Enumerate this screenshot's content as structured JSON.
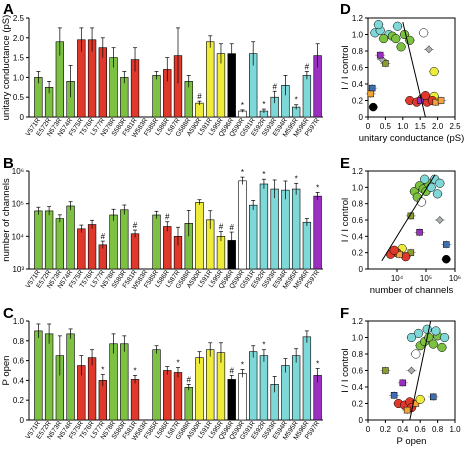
{
  "colors": {
    "green": "#7dc142",
    "red": "#e0392b",
    "yellow": "#eeeb3b",
    "white": "#ffffff",
    "black": "#000000",
    "cyan": "#7fd8d8",
    "purple": "#9b2fc0",
    "olive": "#8e9c2d",
    "blue": "#3f6fb3",
    "orange": "#f2a33a",
    "gray": "#aab0b4"
  },
  "chart_data": [
    {
      "panel": "A",
      "type": "bar",
      "ylabel": "unitary conductance (pS)",
      "ylim": [
        0,
        2.5
      ],
      "yticks": [
        0,
        0.5,
        1.0,
        1.5,
        2.0,
        2.5
      ],
      "ytick_labels": [
        "0",
        "0.5",
        "1.0",
        "1.5",
        "2.0",
        "2.5"
      ],
      "categories": [
        "V571R",
        "E572R",
        "N573R",
        "N574R",
        "F575R",
        "T576R",
        "L577R",
        "N578R",
        "S580R",
        "F581R",
        "W583R",
        "F585R",
        "L586R",
        "L587R",
        "G588R",
        "A590R",
        "L591R",
        "L595R",
        "Q596R",
        "Q590R",
        "G591R",
        "E592R",
        "S593R",
        "E594R",
        "M595R",
        "M596R",
        "P597R"
      ],
      "colors": [
        "green",
        "green",
        "green",
        "green",
        "red",
        "red",
        "red",
        "green",
        "green",
        "red",
        "green",
        "green",
        "red",
        "red",
        "green",
        "yellow",
        "yellow",
        "yellow",
        "black",
        "white",
        "cyan",
        "cyan",
        "cyan",
        "cyan",
        "cyan",
        "cyan",
        "purple"
      ],
      "values": [
        1.0,
        0.75,
        1.9,
        0.9,
        1.95,
        1.95,
        1.75,
        1.5,
        1.0,
        1.45,
        0,
        1.05,
        1.2,
        1.55,
        0.9,
        0.35,
        1.9,
        1.6,
        1.6,
        0.15,
        1.6,
        0.15,
        0.5,
        0.8,
        0.25,
        1.05,
        1.55
      ],
      "errors": [
        0.15,
        0.15,
        0.35,
        0.4,
        0.3,
        0.3,
        0.25,
        0.25,
        0.15,
        0.3,
        0,
        0.1,
        0.3,
        0.7,
        0.15,
        0.05,
        0.15,
        0.25,
        0.25,
        0.03,
        0.3,
        0.05,
        0.15,
        0.25,
        0.06,
        0.1,
        0.3
      ],
      "marks": [
        "",
        "",
        "",
        "",
        "",
        "",
        "",
        "",
        "",
        "",
        "",
        "",
        "",
        "",
        "",
        "#",
        "",
        "",
        "",
        "*",
        "",
        "*",
        "#",
        "",
        "*",
        "#",
        ""
      ]
    },
    {
      "panel": "B",
      "type": "bar",
      "yscale": "log",
      "ylabel": "number of channels",
      "ylim": [
        1000,
        1000000
      ],
      "yticks": [
        1000,
        10000,
        100000,
        1000000
      ],
      "ytick_labels": [
        "10³",
        "10⁴",
        "10⁵",
        "10⁶"
      ],
      "categories": [
        "V571R",
        "E572R",
        "N573R",
        "N574R",
        "F575R",
        "T576R",
        "L577R",
        "N578R",
        "S580R",
        "F581R",
        "W583R",
        "F585R",
        "L586R",
        "L587R",
        "G588R",
        "A590R",
        "L591R",
        "L595R",
        "Q596R",
        "Q590R",
        "G591R",
        "E592R",
        "S593R",
        "E594R",
        "M595R",
        "M596R",
        "P597R"
      ],
      "colors": [
        "green",
        "green",
        "green",
        "green",
        "red",
        "red",
        "red",
        "green",
        "green",
        "red",
        "green",
        "green",
        "red",
        "red",
        "green",
        "yellow",
        "yellow",
        "yellow",
        "black",
        "white",
        "cyan",
        "cyan",
        "cyan",
        "cyan",
        "cyan",
        "cyan",
        "purple"
      ],
      "values": [
        60000,
        60000,
        35000,
        85000,
        17000,
        23000,
        5500,
        45000,
        65000,
        12000,
        0,
        45000,
        20000,
        10000,
        25000,
        110000,
        32000,
        10000,
        7500,
        500000,
        90000,
        400000,
        280000,
        260000,
        280000,
        27000,
        170000
      ],
      "err_factor": [
        1.3,
        1.35,
        1.3,
        1.35,
        1.3,
        1.35,
        1.3,
        1.5,
        1.4,
        1.3,
        1,
        1.3,
        1.4,
        1.9,
        2.5,
        1.2,
        1.9,
        1.4,
        1.8,
        1.3,
        1.4,
        1.4,
        1.9,
        1.9,
        1.5,
        1.3,
        1.3
      ],
      "marks": [
        "",
        "",
        "",
        "",
        "",
        "",
        "#",
        "",
        "",
        "#",
        "",
        "",
        "#",
        "",
        "",
        "",
        "",
        "#",
        "#",
        "*",
        "",
        "*",
        "",
        "",
        "*",
        "",
        "*"
      ]
    },
    {
      "panel": "C",
      "type": "bar",
      "ylabel": "P open",
      "ylim": [
        0,
        1.0
      ],
      "yticks": [
        0,
        0.2,
        0.4,
        0.6,
        0.8,
        1.0
      ],
      "ytick_labels": [
        "0",
        "0.2",
        "0.4",
        "0.6",
        "0.8",
        "1.0"
      ],
      "categories": [
        "V571R",
        "E572R",
        "N573R",
        "N574R",
        "F575R",
        "T576R",
        "L577R",
        "N578R",
        "S580R",
        "F581R",
        "W583R",
        "F585R",
        "L586R",
        "L587R",
        "G588R",
        "A590R",
        "L591R",
        "L595R",
        "Q596R",
        "Q590R",
        "G591R",
        "E592R",
        "S593R",
        "E594R",
        "M595R",
        "M596R",
        "P597R"
      ],
      "colors": [
        "green",
        "green",
        "green",
        "green",
        "red",
        "red",
        "red",
        "green",
        "green",
        "red",
        "green",
        "green",
        "red",
        "red",
        "green",
        "yellow",
        "yellow",
        "yellow",
        "black",
        "white",
        "cyan",
        "cyan",
        "cyan",
        "cyan",
        "cyan",
        "cyan",
        "purple"
      ],
      "values": [
        0.9,
        0.87,
        0.65,
        0.87,
        0.55,
        0.63,
        0.4,
        0.77,
        0.77,
        0.41,
        0,
        0.71,
        0.5,
        0.48,
        0.33,
        0.63,
        0.71,
        0.68,
        0.41,
        0.47,
        0.69,
        0.65,
        0.36,
        0.55,
        0.65,
        0.84,
        0.45
      ],
      "errors": [
        0.07,
        0.1,
        0.2,
        0.05,
        0.1,
        0.08,
        0.06,
        0.1,
        0.08,
        0.04,
        0,
        0.04,
        0.04,
        0.05,
        0.03,
        0.06,
        0.07,
        0.1,
        0.04,
        0.04,
        0.06,
        0.06,
        0.08,
        0.07,
        0.07,
        0.06,
        0.07
      ],
      "marks": [
        "",
        "",
        "",
        "",
        "",
        "",
        "*",
        "",
        "",
        "*",
        "",
        "",
        "",
        "*",
        "#",
        "",
        "",
        "",
        "#",
        "*",
        "",
        "*",
        "",
        "",
        "",
        "",
        "*"
      ]
    },
    {
      "panel": "D",
      "type": "scatter",
      "xlabel": "unitary conductance (pS)",
      "ylabel": "I / I control",
      "xlim": [
        0,
        2.5
      ],
      "ylim": [
        0,
        1.2
      ],
      "xticks": [
        0,
        0.5,
        1.0,
        1.5,
        2.0,
        2.5
      ],
      "xtick_labels": [
        "0",
        "0.5",
        "1.0",
        "1.5",
        "2.0",
        "2.5"
      ],
      "yticks": [
        0,
        0.2,
        0.4,
        0.6,
        0.8,
        1.0,
        1.2
      ],
      "ytick_labels": [
        "0",
        "0.2",
        "0.4",
        "0.6",
        "0.8",
        "1.0",
        "1.2"
      ],
      "fit_line": [
        [
          1.0,
          1.15
        ],
        [
          1.65,
          0.0
        ]
      ],
      "points": [
        {
          "x": 0.15,
          "y": 0.12,
          "c": "black"
        },
        {
          "x": 0.12,
          "y": 0.35,
          "c": "blue"
        },
        {
          "x": 0.08,
          "y": 0.28,
          "c": "orange"
        },
        {
          "x": 0.5,
          "y": 0.65,
          "c": "olive"
        },
        {
          "x": 0.4,
          "y": 0.7,
          "c": "gray"
        },
        {
          "x": 0.35,
          "y": 0.75,
          "c": "purple"
        },
        {
          "x": 0.2,
          "y": 1.02,
          "c": "cyan"
        },
        {
          "x": 0.35,
          "y": 1.05,
          "c": "cyan"
        },
        {
          "x": 0.6,
          "y": 1.0,
          "c": "cyan"
        },
        {
          "x": 0.45,
          "y": 0.95,
          "c": "green"
        },
        {
          "x": 0.7,
          "y": 0.98,
          "c": "green"
        },
        {
          "x": 0.8,
          "y": 0.95,
          "c": "green"
        },
        {
          "x": 1.05,
          "y": 1.0,
          "c": "green"
        },
        {
          "x": 1.2,
          "y": 0.93,
          "c": "green"
        },
        {
          "x": 0.95,
          "y": 0.85,
          "c": "green"
        },
        {
          "x": 0.85,
          "y": 1.1,
          "c": "cyan"
        },
        {
          "x": 0.3,
          "y": 1.12,
          "c": "cyan"
        },
        {
          "x": 1.6,
          "y": 1.02,
          "c": "white"
        },
        {
          "x": 1.75,
          "y": 0.82,
          "c": "gray"
        },
        {
          "x": 1.9,
          "y": 0.55,
          "c": "yellow"
        },
        {
          "x": 1.9,
          "y": 0.25,
          "c": "yellow"
        },
        {
          "x": 1.2,
          "y": 0.2,
          "c": "red"
        },
        {
          "x": 1.4,
          "y": 0.18,
          "c": "red"
        },
        {
          "x": 1.55,
          "y": 0.22,
          "c": "red"
        },
        {
          "x": 1.7,
          "y": 0.18,
          "c": "red"
        },
        {
          "x": 1.85,
          "y": 0.2,
          "c": "red"
        },
        {
          "x": 1.95,
          "y": 0.18,
          "c": "orange"
        },
        {
          "x": 2.1,
          "y": 0.2,
          "c": "orange"
        },
        {
          "x": 1.5,
          "y": 0.2,
          "c": "purple"
        },
        {
          "x": 1.65,
          "y": 0.26,
          "c": "red"
        }
      ]
    },
    {
      "panel": "E",
      "type": "scatter",
      "xscale": "log",
      "xlabel": "number of channels",
      "ylabel": "I / I control",
      "xlim": [
        1000,
        1000000
      ],
      "ylim": [
        0,
        1.2
      ],
      "xticks": [
        10000,
        100000,
        1000000
      ],
      "xtick_labels": [
        "10⁴",
        "10⁵",
        "10⁶"
      ],
      "yticks": [
        0,
        0.2,
        0.4,
        0.6,
        0.8,
        1.0,
        1.2
      ],
      "ytick_labels": [
        "0",
        "0.2",
        "0.4",
        "0.6",
        "0.8",
        "1.0",
        "1.2"
      ],
      "fit_line": [
        [
          3000,
          0.1
        ],
        [
          200000,
          1.15
        ]
      ],
      "points": [
        {
          "x": 500000,
          "y": 0.12,
          "c": "black"
        },
        {
          "x": 500000,
          "y": 0.3,
          "c": "blue"
        },
        {
          "x": 300000,
          "y": 0.6,
          "c": "gray"
        },
        {
          "x": 60000,
          "y": 0.45,
          "c": "purple"
        },
        {
          "x": 30000,
          "y": 0.65,
          "c": "olive"
        },
        {
          "x": 15000,
          "y": 0.25,
          "c": "yellow"
        },
        {
          "x": 30000,
          "y": 0.2,
          "c": "olive"
        },
        {
          "x": 10000,
          "y": 0.2,
          "c": "red"
        },
        {
          "x": 6000,
          "y": 0.18,
          "c": "red"
        },
        {
          "x": 20000,
          "y": 0.15,
          "c": "red"
        },
        {
          "x": 12000,
          "y": 0.18,
          "c": "orange"
        },
        {
          "x": 8000,
          "y": 0.23,
          "c": "red"
        },
        {
          "x": 40000,
          "y": 0.95,
          "c": "green"
        },
        {
          "x": 60000,
          "y": 1.02,
          "c": "green"
        },
        {
          "x": 80000,
          "y": 0.98,
          "c": "green"
        },
        {
          "x": 50000,
          "y": 0.88,
          "c": "green"
        },
        {
          "x": 100000,
          "y": 0.95,
          "c": "green"
        },
        {
          "x": 120000,
          "y": 1.05,
          "c": "green"
        },
        {
          "x": 150000,
          "y": 1.0,
          "c": "cyan"
        },
        {
          "x": 200000,
          "y": 1.1,
          "c": "cyan"
        },
        {
          "x": 250000,
          "y": 0.92,
          "c": "cyan"
        },
        {
          "x": 90000,
          "y": 1.1,
          "c": "cyan"
        },
        {
          "x": 300000,
          "y": 1.05,
          "c": "cyan"
        },
        {
          "x": 70000,
          "y": 0.82,
          "c": "white"
        }
      ]
    },
    {
      "panel": "F",
      "type": "scatter",
      "xlabel": "P open",
      "ylabel": "I / I control",
      "xlim": [
        0,
        1.0
      ],
      "ylim": [
        0,
        1.2
      ],
      "xticks": [
        0,
        0.2,
        0.4,
        0.6,
        0.8,
        1.0
      ],
      "xtick_labels": [
        "0",
        "0.2",
        "0.4",
        "0.6",
        "0.8",
        "1.0"
      ],
      "yticks": [
        0,
        0.2,
        0.4,
        0.6,
        0.8,
        1.0,
        1.2
      ],
      "ytick_labels": [
        "0",
        "0.2",
        "0.4",
        "0.6",
        "0.8",
        "1.0",
        "1.2"
      ],
      "fit_line": [
        [
          0.48,
          0.0
        ],
        [
          0.72,
          1.2
        ]
      ],
      "points": [
        {
          "x": 0.35,
          "y": 0.2,
          "c": "red"
        },
        {
          "x": 0.42,
          "y": 0.18,
          "c": "red"
        },
        {
          "x": 0.48,
          "y": 0.22,
          "c": "red"
        },
        {
          "x": 0.5,
          "y": 0.15,
          "c": "red"
        },
        {
          "x": 0.45,
          "y": 0.12,
          "c": "orange"
        },
        {
          "x": 0.55,
          "y": 0.2,
          "c": "orange"
        },
        {
          "x": 0.6,
          "y": 0.25,
          "c": "yellow"
        },
        {
          "x": 0.75,
          "y": 0.28,
          "c": "blue"
        },
        {
          "x": 0.3,
          "y": 0.3,
          "c": "blue"
        },
        {
          "x": 0.4,
          "y": 0.45,
          "c": "purple"
        },
        {
          "x": 0.2,
          "y": 0.6,
          "c": "olive"
        },
        {
          "x": 0.5,
          "y": 0.6,
          "c": "gray"
        },
        {
          "x": 0.55,
          "y": 0.8,
          "c": "white"
        },
        {
          "x": 0.6,
          "y": 0.9,
          "c": "green"
        },
        {
          "x": 0.65,
          "y": 0.95,
          "c": "green"
        },
        {
          "x": 0.7,
          "y": 1.0,
          "c": "green"
        },
        {
          "x": 0.75,
          "y": 0.92,
          "c": "green"
        },
        {
          "x": 0.8,
          "y": 1.02,
          "c": "green"
        },
        {
          "x": 0.85,
          "y": 0.88,
          "c": "green"
        },
        {
          "x": 0.58,
          "y": 1.05,
          "c": "cyan"
        },
        {
          "x": 0.68,
          "y": 1.1,
          "c": "cyan"
        },
        {
          "x": 0.78,
          "y": 1.08,
          "c": "cyan"
        },
        {
          "x": 0.5,
          "y": 1.0,
          "c": "cyan"
        },
        {
          "x": 0.88,
          "y": 1.0,
          "c": "cyan"
        }
      ]
    }
  ]
}
